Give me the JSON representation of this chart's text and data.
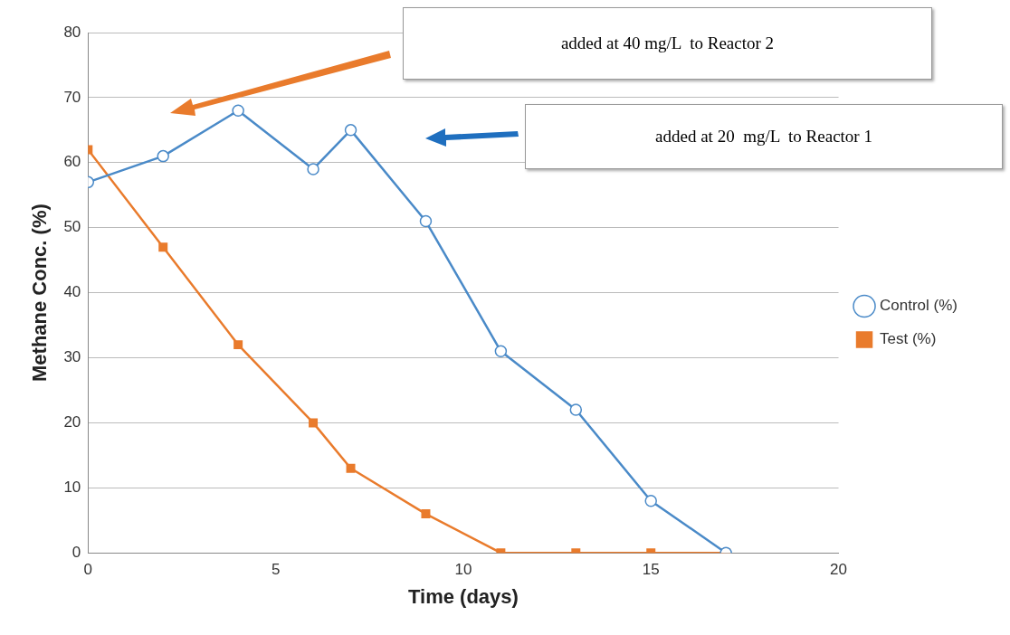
{
  "chart_data": {
    "type": "line",
    "xlabel": "Time (days)",
    "ylabel": "Methane Conc. (%)",
    "annotations": [
      "added at 40 mg/L  to Reactor 2",
      "added at 20  mg/L  to Reactor 1"
    ],
    "series": [
      {
        "name": "Control (%)",
        "color": "#4a8ac8",
        "marker": "circle",
        "x": [
          0,
          2,
          4,
          6,
          7,
          9,
          11,
          13,
          15,
          17
        ],
        "values": [
          57,
          61,
          68,
          59,
          65,
          51,
          31,
          22,
          8,
          0
        ]
      },
      {
        "name": "Test (%)",
        "color": "#e97b2c",
        "marker": "square",
        "x": [
          0,
          2,
          4,
          6,
          7,
          9,
          11,
          13,
          15,
          17
        ],
        "values": [
          62,
          47,
          32,
          20,
          13,
          6,
          0,
          0,
          0,
          0
        ]
      }
    ],
    "xlim": [
      0,
      20
    ],
    "xticks": [
      0,
      5,
      10,
      15,
      20
    ],
    "ylim": [
      0,
      80
    ],
    "yticks": [
      0,
      10,
      20,
      30,
      40,
      50,
      60,
      70,
      80
    ],
    "grid": "y",
    "legend": "right",
    "line_style": "solid"
  }
}
